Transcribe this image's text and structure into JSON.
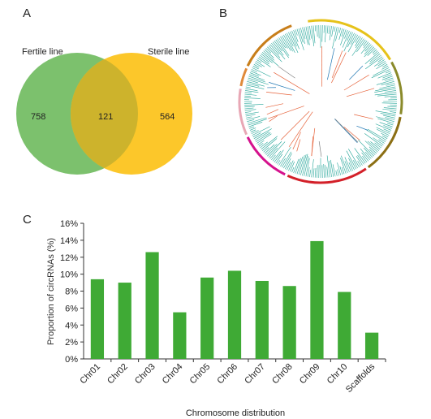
{
  "panels": {
    "a": {
      "letter": "A"
    },
    "b": {
      "letter": "B"
    },
    "c": {
      "letter": "C"
    }
  },
  "venn": {
    "left_label": "Fertile line",
    "right_label": "Sterile line",
    "left_only": "758",
    "overlap": "121",
    "right_only": "564",
    "left_color": "#7cc16d",
    "right_color": "#fcc72a",
    "overlap_color": "#cdb32c"
  },
  "circos": {
    "ring_colors": [
      "#e6c21a",
      "#8a8a2a",
      "#8c6f14",
      "#d32029",
      "#d5128d",
      "#e8a7b5",
      "#e08a3a",
      "#c87e1a"
    ],
    "inner_track_color": "#1fa396",
    "link_colors": [
      "#e6623a",
      "#1f77b4",
      "#7f7f7f"
    ]
  },
  "chart_data": {
    "type": "bar",
    "categories": [
      "Chr01",
      "Chr02",
      "Chr03",
      "Chr04",
      "Chr05",
      "Chr06",
      "Chr07",
      "Chr08",
      "Chr09",
      "Chr10",
      "Scaffolds"
    ],
    "values": [
      9.4,
      9.0,
      12.6,
      5.5,
      9.6,
      10.4,
      9.2,
      8.6,
      13.9,
      7.9,
      3.1
    ],
    "xlabel": "Chromosome distribution",
    "ylabel": "Proportion of circRNAs (%)",
    "ylim": [
      0,
      16
    ],
    "yticks": [
      "0%",
      "2%",
      "4%",
      "6%",
      "8%",
      "10%",
      "12%",
      "14%",
      "16%"
    ],
    "bar_color": "#3faa35",
    "grid": false
  }
}
